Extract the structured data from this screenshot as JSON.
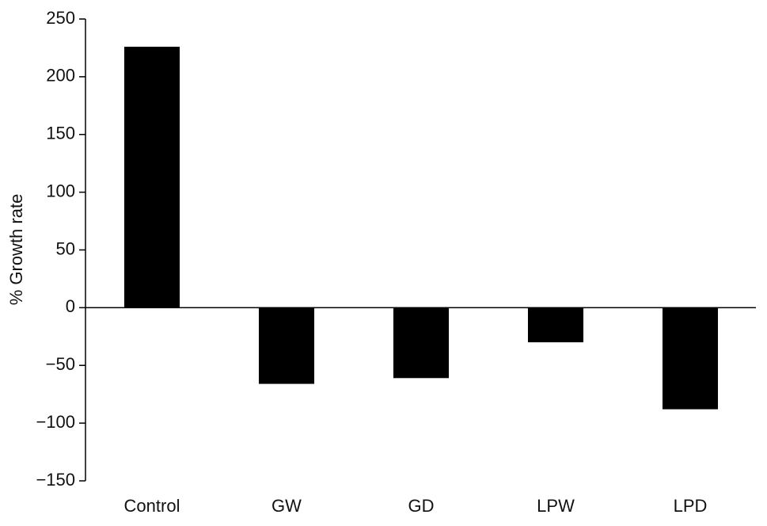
{
  "chart_data": {
    "type": "bar",
    "y_label": "% Growth rate",
    "categories": [
      "Control",
      "GW",
      "GD",
      "LPW",
      "LPD"
    ],
    "values": [
      226,
      -66,
      -61,
      -30,
      -88
    ],
    "color": "#000000",
    "ylim": [
      -150,
      250
    ],
    "yticks": [
      {
        "value": -150,
        "label": "−150"
      },
      {
        "value": -100,
        "label": "−100"
      },
      {
        "value": -50,
        "label": "−50"
      },
      0,
      50,
      100,
      150,
      200,
      250
    ],
    "grid": false
  }
}
